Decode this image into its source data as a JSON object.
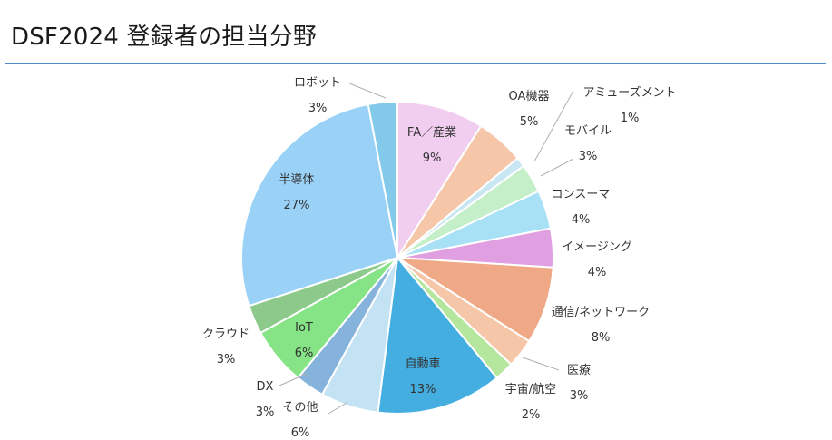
{
  "title": "DSF2024 登録者の担当分野",
  "colors": {
    "title_rule": "#4f8cc8",
    "leader_line": "#b0b0b0"
  },
  "chart_data": {
    "type": "pie",
    "title": "DSF2024 登録者の担当分野",
    "start_angle_deg": 0,
    "direction": "clockwise",
    "slices": [
      {
        "label": "FA／産業",
        "percent_label": "9%",
        "value": 9,
        "color": "#f1cdef"
      },
      {
        "label": "OA機器",
        "percent_label": "5%",
        "value": 5,
        "color": "#f6c6a9"
      },
      {
        "label": "アミューズメント",
        "percent_label": "1%",
        "value": 1,
        "color": "#c9e7f3"
      },
      {
        "label": "モバイル",
        "percent_label": "3%",
        "value": 3,
        "color": "#c4efc8"
      },
      {
        "label": "コンスーマ",
        "percent_label": "4%",
        "value": 4,
        "color": "#a8e0f6"
      },
      {
        "label": "イメージング",
        "percent_label": "4%",
        "value": 4,
        "color": "#df9fe1"
      },
      {
        "label": "通信/ネットワーク",
        "percent_label": "8%",
        "value": 8,
        "color": "#f0a986"
      },
      {
        "label": "医療",
        "percent_label": "3%",
        "value": 3,
        "color": "#f6c6a9"
      },
      {
        "label": "宇宙/航空",
        "percent_label": "2%",
        "value": 2,
        "color": "#b4e69e"
      },
      {
        "label": "自動車",
        "percent_label": "13%",
        "value": 13,
        "color": "#45aee0"
      },
      {
        "label": "その他",
        "percent_label": "6%",
        "value": 6,
        "color": "#c3e3f4"
      },
      {
        "label": "DX",
        "percent_label": "3%",
        "value": 3,
        "color": "#86b3db"
      },
      {
        "label": "IoT",
        "percent_label": "6%",
        "value": 6,
        "color": "#86e386"
      },
      {
        "label": "クラウド",
        "percent_label": "3%",
        "value": 3,
        "color": "#8cc98b"
      },
      {
        "label": "半導体",
        "percent_label": "27%",
        "value": 27,
        "color": "#99d2f6"
      },
      {
        "label": "ロボット",
        "percent_label": "3%",
        "value": 3,
        "color": "#82c9ea"
      }
    ]
  }
}
